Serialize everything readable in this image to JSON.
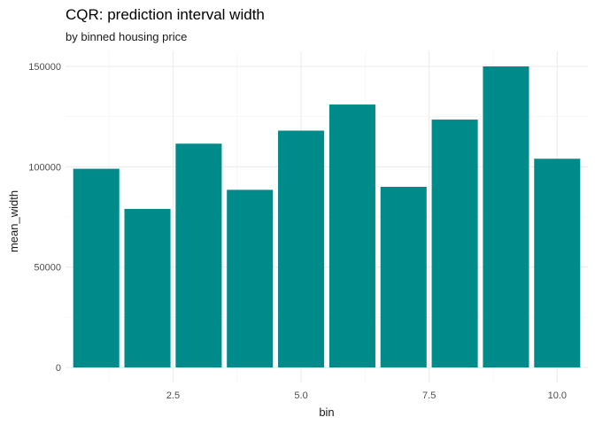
{
  "chart_data": {
    "type": "bar",
    "title": "CQR: prediction interval width",
    "subtitle": "by binned housing price",
    "xlabel": "bin",
    "ylabel": "mean_width",
    "x": [
      1,
      2,
      3,
      4,
      5,
      6,
      7,
      8,
      9,
      10
    ],
    "values": [
      99000,
      79000,
      111500,
      88500,
      118000,
      131000,
      90000,
      123500,
      150000,
      104000
    ],
    "xlim": [
      0.4,
      10.6
    ],
    "ylim": [
      -7500,
      157500
    ],
    "x_ticks": [
      2.5,
      5.0,
      7.5,
      10.0
    ],
    "x_tick_labels": [
      "2.5",
      "5.0",
      "7.5",
      "10.0"
    ],
    "y_ticks": [
      0,
      50000,
      100000,
      150000
    ],
    "y_tick_labels": [
      "0",
      "50000",
      "100000",
      "150000"
    ],
    "bar_color": "#008B8B",
    "grid": true,
    "legend": "none"
  }
}
